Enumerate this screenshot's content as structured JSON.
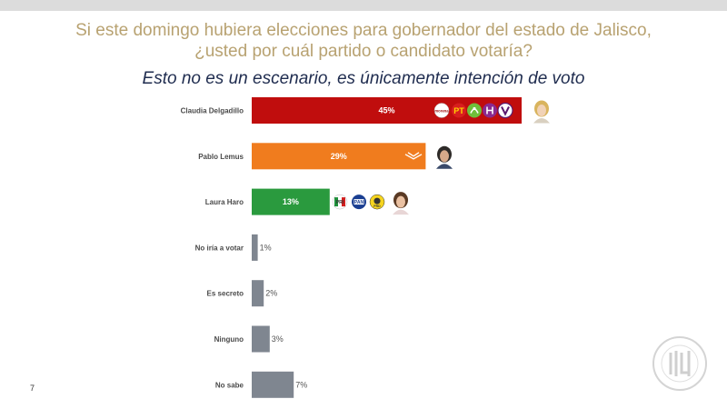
{
  "page": {
    "title_line1": "Si este domingo hubiera elecciones para gobernador del estado de Jalisco,",
    "title_line2": "¿usted por cuál partido o candidato votaría?",
    "subtitle": "Esto no es un escenario, es únicamente intención de voto",
    "page_number": "7"
  },
  "colors": {
    "title": "#b8a271",
    "subtitle": "#1f2c4f",
    "morena": "#c00d0d",
    "mc": "#f07c1e",
    "prian": "#2a9a3e",
    "other": "#7f8690"
  },
  "chart_data": {
    "type": "bar",
    "orientation": "horizontal",
    "categories": [
      "Claudia Delgadillo",
      "Pablo Lemus",
      "Laura Haro",
      "No iría a votar",
      "Es secreto",
      "Ninguno",
      "No sabe"
    ],
    "values": [
      45,
      29,
      13,
      1,
      2,
      3,
      7
    ],
    "value_labels": [
      "45%",
      "29%",
      "13%",
      "1%",
      "2%",
      "3%",
      "7%"
    ],
    "bar_colors": [
      "#c00d0d",
      "#f07c1e",
      "#2a9a3e",
      "#7f8690",
      "#7f8690",
      "#7f8690",
      "#7f8690"
    ],
    "unit": "%",
    "xlim": [
      0,
      100
    ],
    "grid": false,
    "legend": "none",
    "party_logos": {
      "Claudia Delgadillo": [
        "morena",
        "pt",
        "pvem",
        "hagamos",
        "futuro"
      ],
      "Pablo Lemus": [
        "mc"
      ],
      "Laura Haro": [
        "pri",
        "pan",
        "prd"
      ]
    }
  },
  "logo_text": {
    "morena": "morena",
    "pt": "PT",
    "pri": "PRI",
    "pan": "PAN",
    "prd": "PRD"
  }
}
